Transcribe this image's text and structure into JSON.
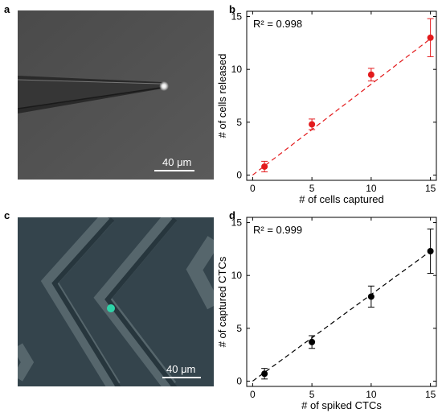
{
  "panels": {
    "a": {
      "letter": "a",
      "scale_label": "40 μm"
    },
    "b": {
      "letter": "b"
    },
    "c": {
      "letter": "c",
      "scale_label": "40 μm"
    },
    "d": {
      "letter": "d"
    }
  },
  "colors": {
    "series_b": "#e31a1c",
    "series_d": "#000000",
    "cell_fluorescence": "#2fd3a8"
  },
  "chart_data": [
    {
      "type": "scatter",
      "panel": "b",
      "title": "",
      "xlabel": "# of cells captured",
      "ylabel": "# of cells released",
      "annotation": "R² = 0.998",
      "x": [
        1,
        5,
        10,
        15
      ],
      "y": [
        0.8,
        4.8,
        9.5,
        13.0
      ],
      "yerr": [
        0.5,
        0.5,
        0.6,
        1.8
      ],
      "fit_line": [
        [
          0,
          0
        ],
        [
          15,
          12.9
        ]
      ],
      "xlim": [
        -0.5,
        15.5
      ],
      "ylim": [
        -0.5,
        15.5
      ],
      "xticks": [
        0,
        5,
        10,
        15
      ],
      "yticks": [
        0,
        5,
        10,
        15
      ],
      "color": "#e31a1c",
      "grid": false
    },
    {
      "type": "scatter",
      "panel": "d",
      "title": "",
      "xlabel": "# of spiked CTCs",
      "ylabel": "# of captured CTCs",
      "annotation": "R² = 0.999",
      "x": [
        1,
        5,
        10,
        15
      ],
      "y": [
        0.7,
        3.7,
        8.0,
        12.3
      ],
      "yerr": [
        0.5,
        0.6,
        1.0,
        2.1
      ],
      "fit_line": [
        [
          0,
          0
        ],
        [
          15,
          12.3
        ]
      ],
      "xlim": [
        -0.5,
        15.5
      ],
      "ylim": [
        -0.5,
        15.5
      ],
      "xticks": [
        0,
        5,
        10,
        15
      ],
      "yticks": [
        0,
        5,
        10,
        15
      ],
      "color": "#000000",
      "grid": false
    }
  ]
}
